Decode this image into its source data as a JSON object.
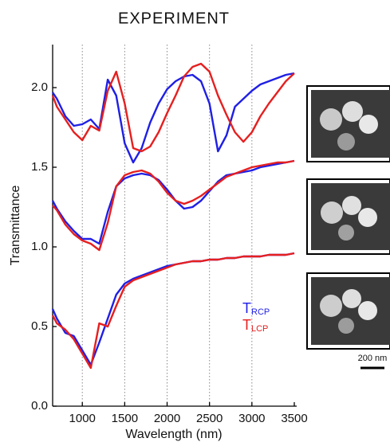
{
  "chart_data": {
    "type": "line",
    "title": "EXPERIMENT",
    "x_label": "Wavelength (nm)",
    "y_label": "Transmittance",
    "scale_bar": "200 nm",
    "x": [
      650,
      700,
      800,
      900,
      1000,
      1100,
      1200,
      1300,
      1400,
      1500,
      1600,
      1700,
      1800,
      1900,
      2000,
      2100,
      2200,
      2300,
      2400,
      2500,
      2600,
      2700,
      2800,
      2900,
      3000,
      3100,
      3200,
      3300,
      3400,
      3500
    ],
    "legend": [
      {
        "text": "T",
        "sub": "RCP",
        "color": "#1f1fe6"
      },
      {
        "text": "T",
        "sub": "LCP",
        "color": "#e61f1f"
      }
    ],
    "series": [
      {
        "color": "#1f1fe6",
        "values": [
          1.97,
          1.93,
          1.82,
          1.76,
          1.77,
          1.8,
          1.74,
          2.05,
          1.95,
          1.65,
          1.53,
          1.62,
          1.78,
          1.9,
          1.99,
          2.04,
          2.07,
          2.08,
          2.04,
          1.9,
          1.6,
          1.7,
          1.88,
          1.93,
          1.98,
          2.02,
          2.04,
          2.06,
          2.08,
          2.09
        ]
      },
      {
        "color": "#e61f1f",
        "values": [
          1.95,
          1.88,
          1.8,
          1.72,
          1.67,
          1.76,
          1.73,
          1.98,
          2.1,
          1.9,
          1.62,
          1.6,
          1.63,
          1.72,
          1.84,
          1.95,
          2.07,
          2.13,
          2.15,
          2.1,
          1.95,
          1.83,
          1.72,
          1.66,
          1.72,
          1.82,
          1.9,
          1.97,
          2.04,
          2.09
        ]
      },
      {
        "color": "#1f1fe6",
        "values": [
          1.29,
          1.24,
          1.16,
          1.1,
          1.05,
          1.05,
          1.02,
          1.22,
          1.38,
          1.43,
          1.45,
          1.46,
          1.45,
          1.42,
          1.36,
          1.29,
          1.24,
          1.25,
          1.29,
          1.35,
          1.41,
          1.45,
          1.46,
          1.47,
          1.48,
          1.5,
          1.51,
          1.52,
          1.53,
          1.54
        ]
      },
      {
        "color": "#e61f1f",
        "values": [
          1.26,
          1.23,
          1.14,
          1.08,
          1.04,
          1.02,
          0.98,
          1.15,
          1.38,
          1.45,
          1.47,
          1.48,
          1.46,
          1.41,
          1.34,
          1.29,
          1.27,
          1.29,
          1.32,
          1.36,
          1.4,
          1.44,
          1.46,
          1.48,
          1.5,
          1.51,
          1.52,
          1.53,
          1.53,
          1.54
        ]
      },
      {
        "color": "#1f1fe6",
        "values": [
          0.61,
          0.55,
          0.46,
          0.44,
          0.35,
          0.26,
          0.4,
          0.55,
          0.7,
          0.77,
          0.8,
          0.82,
          0.84,
          0.86,
          0.88,
          0.89,
          0.9,
          0.91,
          0.91,
          0.92,
          0.92,
          0.93,
          0.93,
          0.94,
          0.94,
          0.94,
          0.95,
          0.95,
          0.95,
          0.96
        ]
      },
      {
        "color": "#e61f1f",
        "values": [
          0.57,
          0.52,
          0.48,
          0.42,
          0.33,
          0.24,
          0.52,
          0.5,
          0.63,
          0.75,
          0.79,
          0.81,
          0.83,
          0.85,
          0.87,
          0.89,
          0.9,
          0.91,
          0.91,
          0.92,
          0.92,
          0.93,
          0.93,
          0.94,
          0.94,
          0.94,
          0.95,
          0.95,
          0.95,
          0.96
        ]
      }
    ],
    "xlim": [
      650,
      3500
    ],
    "ylim": [
      0,
      2.27
    ],
    "xticks": [
      1000,
      1500,
      2000,
      2500,
      3000,
      3500
    ],
    "xgrid": [
      1000,
      1500,
      2000,
      2500,
      3000
    ],
    "yticks": [
      {
        "value": 0,
        "label": "0.0"
      },
      {
        "value": 0.5,
        "label": "0.5"
      },
      {
        "value": 1,
        "label": "1.0"
      },
      {
        "value": 1.5,
        "label": "1.5"
      },
      {
        "value": 2,
        "label": "2.0"
      }
    ]
  }
}
